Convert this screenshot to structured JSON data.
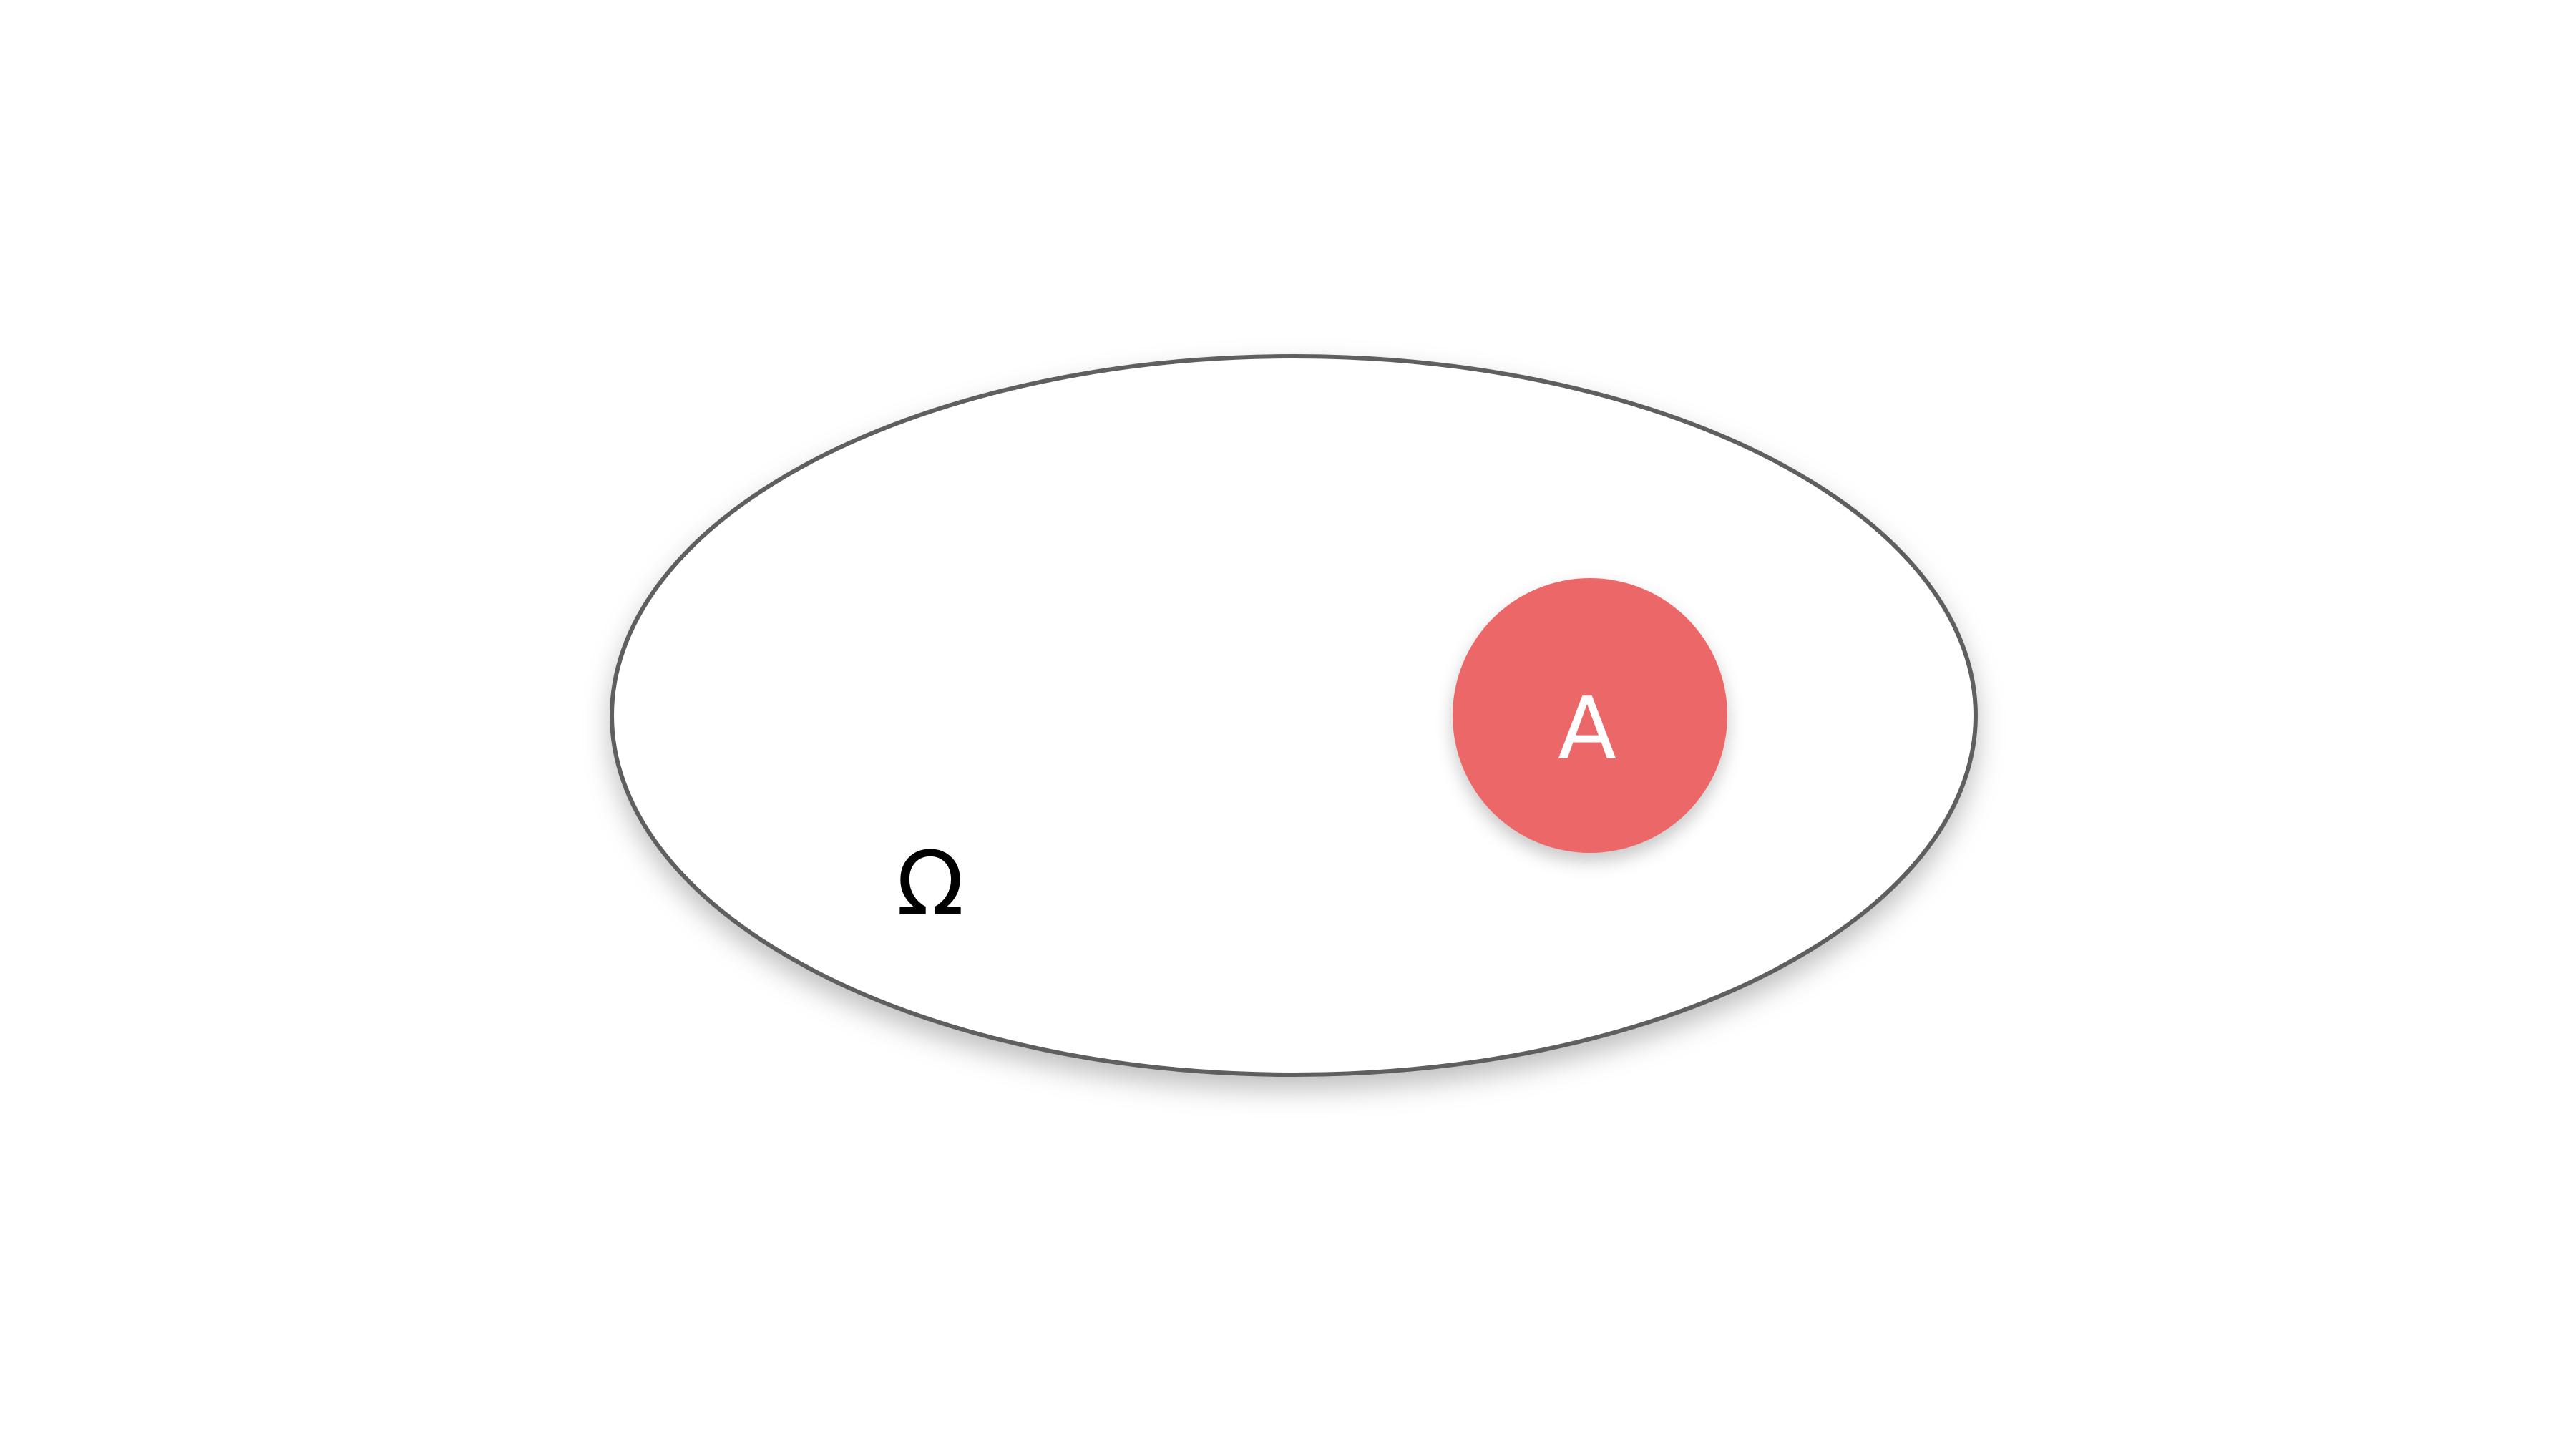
{
  "diagram": {
    "universe_label": "Ω",
    "set_label": "A",
    "colors": {
      "background": "#ffffff",
      "universe_stroke": "#5f5f5f",
      "universe_fill": "#ffffff",
      "set_fill": "#ec6767",
      "set_label_color": "#ffffff",
      "universe_label_color": "#000000"
    }
  }
}
